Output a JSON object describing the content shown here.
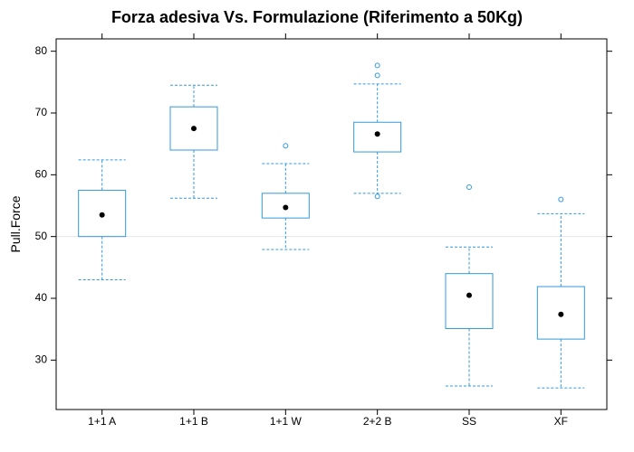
{
  "chart_data": {
    "type": "boxplot",
    "title": "Forza adesiva Vs. Formulazione (Riferimento a 50Kg)",
    "xlabel": "",
    "ylabel": "Pull.Force",
    "ylim": [
      22,
      82
    ],
    "yticks": [
      30,
      40,
      50,
      60,
      70,
      80
    ],
    "reference_line": 50,
    "categories": [
      "1+1 A",
      "1+1 B",
      "1+1 W",
      "2+2 B",
      "SS",
      "XF"
    ],
    "boxes": [
      {
        "category": "1+1 A",
        "whisker_low": 43.0,
        "q1": 50.0,
        "median": 53.5,
        "q3": 57.5,
        "whisker_high": 62.4,
        "outliers": []
      },
      {
        "category": "1+1 B",
        "whisker_low": 56.2,
        "q1": 64.0,
        "median": 67.5,
        "q3": 71.0,
        "whisker_high": 74.5,
        "outliers": []
      },
      {
        "category": "1+1 W",
        "whisker_low": 47.9,
        "q1": 53.0,
        "median": 54.7,
        "q3": 57.0,
        "whisker_high": 61.8,
        "outliers": [
          64.7
        ]
      },
      {
        "category": "2+2 B",
        "whisker_low": 57.0,
        "q1": 63.7,
        "median": 66.6,
        "q3": 68.5,
        "whisker_high": 74.7,
        "outliers": [
          56.5,
          76.1,
          77.7
        ]
      },
      {
        "category": "SS",
        "whisker_low": 25.8,
        "q1": 35.1,
        "median": 40.5,
        "q3": 44.0,
        "whisker_high": 48.3,
        "outliers": [
          58.0
        ]
      },
      {
        "category": "XF",
        "whisker_low": 25.5,
        "q1": 33.4,
        "median": 37.4,
        "q3": 41.9,
        "whisker_high": 53.7,
        "outliers": [
          56.0
        ]
      }
    ],
    "box_color": "#3399dd",
    "median_color": "#000000",
    "reference_line_color": "#e6e6e6",
    "grid": false,
    "legend": "none"
  }
}
